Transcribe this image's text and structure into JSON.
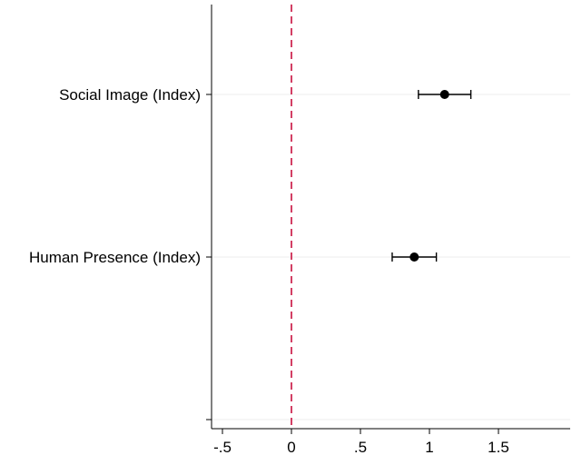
{
  "chart_data": {
    "type": "scatter",
    "orientation": "horizontal",
    "title": "",
    "xlabel": "",
    "ylabel": "",
    "xlim": [
      -0.6,
      2.0
    ],
    "x_ticks": [
      {
        "value": -0.5,
        "label": "-.5"
      },
      {
        "value": 0,
        "label": "0"
      },
      {
        "value": 0.5,
        "label": ".5"
      },
      {
        "value": 1,
        "label": "1"
      },
      {
        "value": 1.5,
        "label": "1.5"
      }
    ],
    "ylim": [
      0,
      2.5
    ],
    "reference_line": {
      "x": 0,
      "style": "dashed",
      "color": "#c8103e"
    },
    "grid": true,
    "points": [
      {
        "label": "Social Image (Index)",
        "y": 2,
        "estimate": 1.11,
        "ci_low": 0.92,
        "ci_high": 1.3
      },
      {
        "label": "Human Presence (Index)",
        "y": 1,
        "estimate": 0.89,
        "ci_low": 0.73,
        "ci_high": 1.05
      }
    ],
    "extra_y_ticks": [
      0
    ],
    "colors": {
      "marker": "#000000",
      "ci": "#000000",
      "grid": "#eeeeee"
    }
  }
}
